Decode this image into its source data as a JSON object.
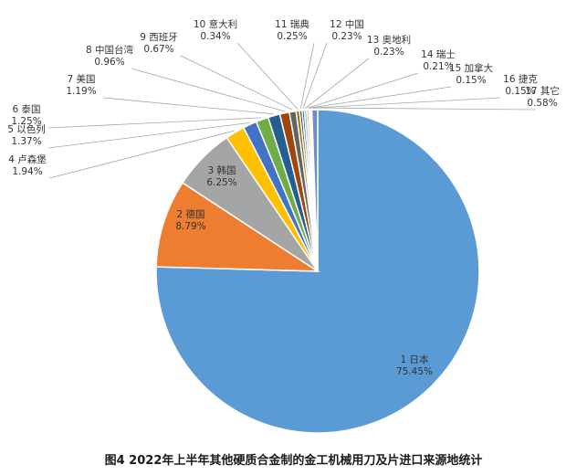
{
  "caption": "图4 2022年上半年其他硬质合金制的金工机械用刀及片进口来源地统计",
  "chart_data": {
    "type": "pie",
    "title": "图4 2022年上半年其他硬质合金制的金工机械用刀及片进口来源地统计",
    "slices": [
      {
        "rank": "1",
        "label": "日本",
        "value": 75.45,
        "display": "75.45%",
        "color": "#5b9bd5"
      },
      {
        "rank": "2",
        "label": "德国",
        "value": 8.79,
        "display": "8.79%",
        "color": "#ed7d31"
      },
      {
        "rank": "3",
        "label": "韩国",
        "value": 6.25,
        "display": "6.25%",
        "color": "#a5a5a5"
      },
      {
        "rank": "4",
        "label": "卢森堡",
        "value": 1.94,
        "display": "1.94%",
        "color": "#ffc000"
      },
      {
        "rank": "5",
        "label": "以色列",
        "value": 1.37,
        "display": "1.37%",
        "color": "#4472c4"
      },
      {
        "rank": "6",
        "label": "泰国",
        "value": 1.25,
        "display": "1.25%",
        "color": "#70ad47"
      },
      {
        "rank": "7",
        "label": "美国",
        "value": 1.19,
        "display": "1.19%",
        "color": "#255e91"
      },
      {
        "rank": "8",
        "label": "中国台湾",
        "value": 0.96,
        "display": "0.96%",
        "color": "#9e480e"
      },
      {
        "rank": "9",
        "label": "西班牙",
        "value": 0.67,
        "display": "0.67%",
        "color": "#636363"
      },
      {
        "rank": "10",
        "label": "意大利",
        "value": 0.34,
        "display": "0.34%",
        "color": "#997300"
      },
      {
        "rank": "11",
        "label": "瑞典",
        "value": 0.25,
        "display": "0.25%",
        "color": "#264478"
      },
      {
        "rank": "12",
        "label": "中国",
        "value": 0.23,
        "display": "0.23%",
        "color": "#43682b"
      },
      {
        "rank": "13",
        "label": "奥地利",
        "value": 0.23,
        "display": "0.23%",
        "color": "#7cafdd"
      },
      {
        "rank": "14",
        "label": "瑞士",
        "value": 0.21,
        "display": "0.21%",
        "color": "#f1975a"
      },
      {
        "rank": "15",
        "label": "加拿大",
        "value": 0.15,
        "display": "0.15%",
        "color": "#b7b7b7"
      },
      {
        "rank": "16",
        "label": "捷克",
        "value": 0.15,
        "display": "0.15%",
        "color": "#ffcd33"
      },
      {
        "rank": "17",
        "label": "其它",
        "value": 0.58,
        "display": "0.58%",
        "color": "#698ed0"
      }
    ]
  }
}
